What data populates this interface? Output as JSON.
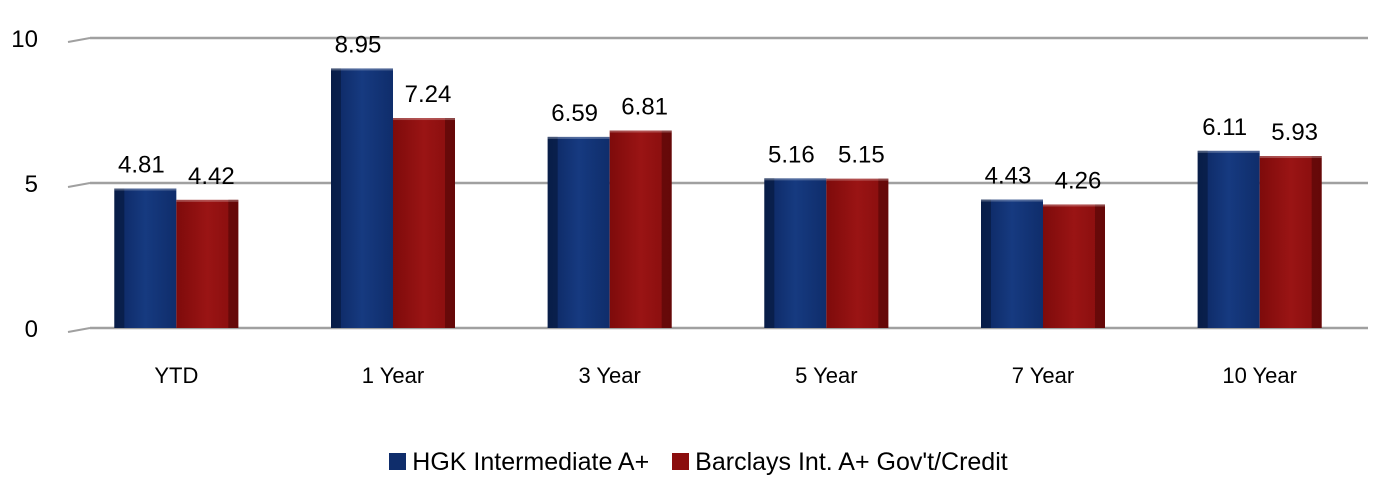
{
  "chart_data": {
    "type": "bar",
    "title": "",
    "xlabel": "",
    "ylabel": "",
    "categories": [
      "YTD",
      "1 Year",
      "3 Year",
      "5 Year",
      "7 Year",
      "10 Year"
    ],
    "series": [
      {
        "name": "HGK Intermediate A+",
        "values": [
          4.81,
          8.95,
          6.59,
          5.16,
          4.43,
          6.11
        ],
        "color": "#0f2d6b"
      },
      {
        "name": "Barclays Int. A+ Gov't/Credit",
        "values": [
          4.42,
          7.24,
          6.81,
          5.15,
          4.26,
          5.93
        ],
        "color": "#8b0d0d"
      }
    ],
    "ylim": [
      0,
      10
    ],
    "yticks": [
      0,
      5,
      10
    ],
    "grid": true,
    "legend_position": "bottom"
  }
}
